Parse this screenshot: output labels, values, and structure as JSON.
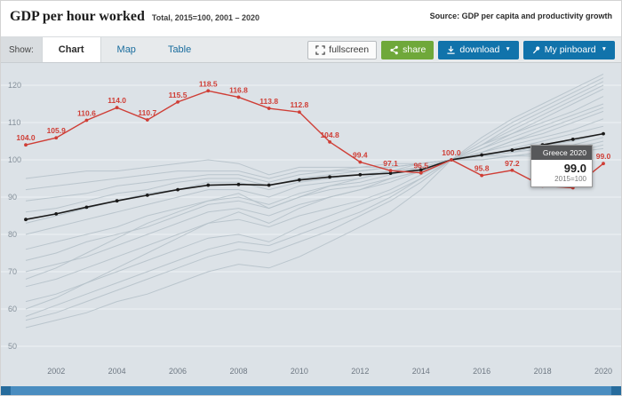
{
  "header": {
    "title": "GDP per hour worked",
    "subtitle": "Total, 2015=100, 2001 – 2020",
    "source": "Source: GDP per capita and productivity growth"
  },
  "toolbar": {
    "show_label": "Show:",
    "tabs": [
      {
        "label": "Chart",
        "active": true
      },
      {
        "label": "Map",
        "active": false
      },
      {
        "label": "Table",
        "active": false
      }
    ],
    "fullscreen_label": "fullscreen",
    "share_label": "share",
    "download_label": "download",
    "pinboard_label": "My pinboard",
    "caret": "▼"
  },
  "tooltip": {
    "title": "Greece 2020",
    "value": "99.0",
    "note": "2015=100"
  },
  "colors": {
    "highlight_red": "#cf3e36",
    "highlight_black": "#1a1a1a",
    "chart_background": "#dce2e7",
    "button_blue": "#1173ab",
    "button_green": "#6fa83a"
  },
  "chart_data": {
    "type": "line",
    "title": "GDP per hour worked",
    "subtitle": "Total, 2015=100, 2001 – 2020",
    "x": [
      2001,
      2002,
      2003,
      2004,
      2005,
      2006,
      2007,
      2008,
      2009,
      2010,
      2011,
      2012,
      2013,
      2014,
      2015,
      2016,
      2017,
      2018,
      2019,
      2020
    ],
    "x_tick_years": [
      2002,
      2004,
      2006,
      2008,
      2010,
      2012,
      2014,
      2016,
      2018,
      2020
    ],
    "y_ticks": [
      50,
      60,
      70,
      80,
      90,
      100,
      110,
      120
    ],
    "ylim": [
      50,
      120
    ],
    "grid": true,
    "legend": "none",
    "background_color": "#b6c2ca",
    "series": [
      {
        "id": "black",
        "name": "",
        "color": "#1a1a1a",
        "values": [
          84,
          85.5,
          87.3,
          89,
          90.5,
          92,
          93.2,
          93.4,
          93.2,
          94.6,
          95.4,
          96,
          96.4,
          97.3,
          100,
          101.3,
          102.6,
          104,
          105.5,
          107
        ]
      },
      {
        "id": "greece",
        "name": "Greece",
        "color": "#cf3e36",
        "values": [
          104.0,
          105.9,
          110.6,
          114.0,
          110.7,
          115.5,
          118.5,
          116.8,
          113.8,
          112.8,
          104.8,
          99.4,
          97.1,
          96.5,
          100.0,
          95.8,
          97.2,
          93.0,
          92.5,
          99.0
        ],
        "labels": [
          "104.0",
          "105.9",
          "110.6",
          "114.0",
          "110.7",
          "115.5",
          "118.5",
          "116.8",
          "113.8",
          "112.8",
          "104.8",
          "99.4",
          "97.1",
          "96.5",
          "100.0",
          "95.8",
          "97.2",
          "",
          "",
          "99.0"
        ]
      }
    ],
    "background_series": [
      [
        55,
        57,
        59,
        62,
        64,
        67,
        70,
        72,
        71,
        74,
        78,
        82,
        86,
        92,
        100,
        105,
        110,
        114,
        118,
        122
      ],
      [
        58,
        61,
        64,
        67,
        70,
        73,
        76,
        78,
        77,
        80,
        83,
        86,
        90,
        95,
        100,
        104,
        109,
        113,
        117,
        121
      ],
      [
        62,
        64,
        67,
        70,
        73,
        76,
        79,
        80,
        78,
        82,
        85,
        88,
        91,
        95,
        100,
        103,
        107,
        111,
        115,
        119
      ],
      [
        66,
        68,
        71,
        74,
        77,
        80,
        83,
        84,
        82,
        85,
        87,
        89,
        92,
        96,
        100,
        104,
        107,
        110,
        113,
        117
      ],
      [
        70,
        72,
        74,
        77,
        80,
        83,
        86,
        87,
        85,
        88,
        90,
        92,
        94,
        97,
        100,
        103,
        106,
        109,
        112,
        115
      ],
      [
        73,
        75,
        78,
        80,
        82,
        85,
        88,
        89,
        87,
        90,
        92,
        93,
        95,
        97,
        100,
        102,
        105,
        107,
        110,
        113
      ],
      [
        76,
        78,
        80,
        82,
        85,
        87,
        89,
        90,
        88,
        91,
        93,
        94,
        96,
        98,
        100,
        102,
        104,
        106,
        108,
        111
      ],
      [
        80,
        82,
        84,
        86,
        88,
        90,
        92,
        92,
        90,
        93,
        94,
        95,
        97,
        98,
        100,
        101,
        103,
        105,
        107,
        109
      ],
      [
        83,
        85,
        87,
        89,
        91,
        92,
        94,
        94,
        92,
        94,
        95,
        96,
        97,
        99,
        100,
        101,
        102,
        104,
        105,
        107
      ],
      [
        86,
        87,
        89,
        91,
        92,
        94,
        95,
        95,
        93,
        95,
        96,
        97,
        98,
        99,
        100,
        101,
        102,
        103,
        104,
        106
      ],
      [
        89,
        90,
        91,
        93,
        94,
        95,
        96,
        96,
        94,
        96,
        97,
        97,
        98,
        99,
        100,
        101,
        101,
        102,
        103,
        105
      ],
      [
        92,
        93,
        94,
        95,
        96,
        97,
        97,
        97,
        95,
        97,
        97,
        98,
        99,
        99,
        100,
        100,
        101,
        102,
        102,
        104
      ],
      [
        60,
        63,
        67,
        71,
        75,
        79,
        83,
        86,
        83,
        87,
        90,
        92,
        95,
        97,
        100,
        104,
        108,
        112,
        116,
        120
      ],
      [
        68,
        71,
        75,
        79,
        83,
        86,
        89,
        91,
        87,
        90,
        93,
        95,
        97,
        98,
        100,
        102,
        105,
        108,
        111,
        114
      ],
      [
        95,
        96,
        97,
        97,
        98,
        99,
        100,
        99,
        96,
        98,
        98,
        98,
        98,
        99,
        100,
        100,
        101,
        101,
        102,
        103
      ],
      [
        57,
        59,
        62,
        65,
        68,
        71,
        74,
        76,
        75,
        78,
        81,
        85,
        89,
        94,
        100,
        106,
        111,
        115,
        119,
        123
      ]
    ]
  }
}
